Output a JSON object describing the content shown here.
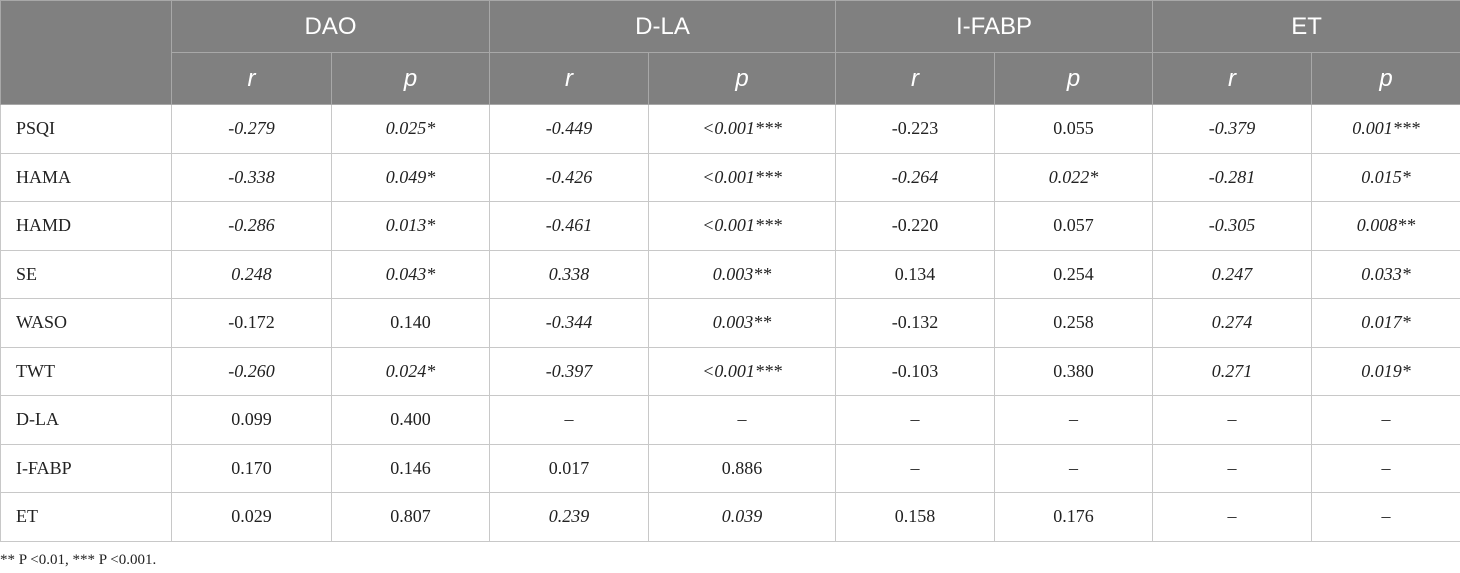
{
  "table": {
    "groups": [
      "DAO",
      "D-LA",
      "I-FABP",
      "ET"
    ],
    "subheaders": [
      "r",
      "p",
      "r",
      "p",
      "r",
      "p",
      "r",
      "p"
    ],
    "rows": [
      {
        "label": "PSQI",
        "cells": [
          {
            "v": "-0.279",
            "sig": true
          },
          {
            "v": "0.025*",
            "sig": true
          },
          {
            "v": "-0.449",
            "sig": true
          },
          {
            "v": "<0.001***",
            "sig": true
          },
          {
            "v": "-0.223",
            "sig": false
          },
          {
            "v": "0.055",
            "sig": false
          },
          {
            "v": "-0.379",
            "sig": true
          },
          {
            "v": "0.001***",
            "sig": true
          }
        ]
      },
      {
        "label": "HAMA",
        "cells": [
          {
            "v": "-0.338",
            "sig": true
          },
          {
            "v": "0.049*",
            "sig": true
          },
          {
            "v": "-0.426",
            "sig": true
          },
          {
            "v": "<0.001***",
            "sig": true
          },
          {
            "v": "-0.264",
            "sig": true
          },
          {
            "v": "0.022*",
            "sig": true
          },
          {
            "v": "-0.281",
            "sig": true
          },
          {
            "v": "0.015*",
            "sig": true
          }
        ]
      },
      {
        "label": "HAMD",
        "cells": [
          {
            "v": "-0.286",
            "sig": true
          },
          {
            "v": "0.013*",
            "sig": true
          },
          {
            "v": "-0.461",
            "sig": true
          },
          {
            "v": "<0.001***",
            "sig": true
          },
          {
            "v": "-0.220",
            "sig": false
          },
          {
            "v": "0.057",
            "sig": false
          },
          {
            "v": "-0.305",
            "sig": true
          },
          {
            "v": "0.008**",
            "sig": true
          }
        ]
      },
      {
        "label": "SE",
        "cells": [
          {
            "v": "0.248",
            "sig": true
          },
          {
            "v": "0.043*",
            "sig": true
          },
          {
            "v": "0.338",
            "sig": true
          },
          {
            "v": "0.003**",
            "sig": true
          },
          {
            "v": "0.134",
            "sig": false
          },
          {
            "v": "0.254",
            "sig": false
          },
          {
            "v": "0.247",
            "sig": true
          },
          {
            "v": "0.033*",
            "sig": true
          }
        ]
      },
      {
        "label": "WASO",
        "cells": [
          {
            "v": "-0.172",
            "sig": false
          },
          {
            "v": "0.140",
            "sig": false
          },
          {
            "v": "-0.344",
            "sig": true
          },
          {
            "v": "0.003**",
            "sig": true
          },
          {
            "v": "-0.132",
            "sig": false
          },
          {
            "v": "0.258",
            "sig": false
          },
          {
            "v": "0.274",
            "sig": true
          },
          {
            "v": "0.017*",
            "sig": true
          }
        ]
      },
      {
        "label": "TWT",
        "cells": [
          {
            "v": "-0.260",
            "sig": true
          },
          {
            "v": "0.024*",
            "sig": true
          },
          {
            "v": "-0.397",
            "sig": true
          },
          {
            "v": "<0.001***",
            "sig": true
          },
          {
            "v": "-0.103",
            "sig": false
          },
          {
            "v": "0.380",
            "sig": false
          },
          {
            "v": "0.271",
            "sig": true
          },
          {
            "v": "0.019*",
            "sig": true
          }
        ]
      },
      {
        "label": "D-LA",
        "cells": [
          {
            "v": "0.099",
            "sig": false
          },
          {
            "v": "0.400",
            "sig": false
          },
          {
            "v": "–",
            "sig": false
          },
          {
            "v": "–",
            "sig": false
          },
          {
            "v": "–",
            "sig": false
          },
          {
            "v": "–",
            "sig": false
          },
          {
            "v": "–",
            "sig": false
          },
          {
            "v": "–",
            "sig": false
          }
        ]
      },
      {
        "label": "I-FABP",
        "cells": [
          {
            "v": "0.170",
            "sig": false
          },
          {
            "v": "0.146",
            "sig": false
          },
          {
            "v": "0.017",
            "sig": false
          },
          {
            "v": "0.886",
            "sig": false
          },
          {
            "v": "–",
            "sig": false
          },
          {
            "v": "–",
            "sig": false
          },
          {
            "v": "–",
            "sig": false
          },
          {
            "v": "–",
            "sig": false
          }
        ]
      },
      {
        "label": "ET",
        "cells": [
          {
            "v": "0.029",
            "sig": false
          },
          {
            "v": "0.807",
            "sig": false
          },
          {
            "v": "0.239",
            "sig": true
          },
          {
            "v": "0.039",
            "sig": true
          },
          {
            "v": "0.158",
            "sig": false
          },
          {
            "v": "0.176",
            "sig": false
          },
          {
            "v": "–",
            "sig": false
          },
          {
            "v": "–",
            "sig": false
          }
        ]
      }
    ]
  },
  "footnote": "** P <0.01, *** P <0.001.",
  "colors": {
    "header_bg": "#808080",
    "header_text": "#ffffff",
    "border": "#c8c8c8"
  }
}
